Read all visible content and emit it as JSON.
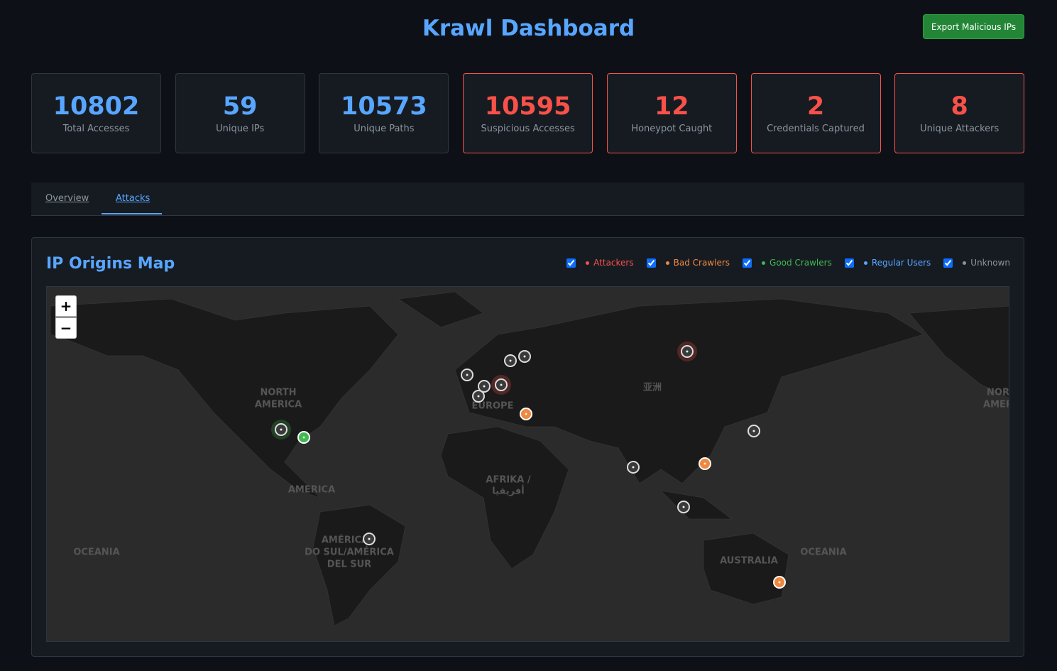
{
  "header": {
    "title": "Krawl Dashboard",
    "export_button": "Export Malicious IPs"
  },
  "stats": [
    {
      "value": 10802,
      "label": "Total Accesses",
      "alert": false
    },
    {
      "value": 59,
      "label": "Unique IPs",
      "alert": false
    },
    {
      "value": 10573,
      "label": "Unique Paths",
      "alert": false
    },
    {
      "value": 10595,
      "label": "Suspicious Accesses",
      "alert": true
    },
    {
      "value": 12,
      "label": "Honeypot Caught",
      "alert": true
    },
    {
      "value": 2,
      "label": "Credentials Captured",
      "alert": true
    },
    {
      "value": 8,
      "label": "Unique Attackers",
      "alert": true
    }
  ],
  "tabs": {
    "items": [
      "Overview",
      "Attacks"
    ],
    "active": 1
  },
  "map": {
    "title": "IP Origins Map",
    "legend": [
      {
        "label": "Attackers",
        "color": "#f85149"
      },
      {
        "label": "Bad Crawlers",
        "color": "#f0883e"
      },
      {
        "label": "Good Crawlers",
        "color": "#3fb950"
      },
      {
        "label": "Regular Users",
        "color": "#58a6ff"
      },
      {
        "label": "Unknown",
        "color": "#8b949e"
      }
    ],
    "zoom": [
      "+",
      "−"
    ],
    "labels": [
      "NORTH",
      "AMERICA",
      "EUROPE",
      "AMERICA",
      "AFRIKA /",
      "أفريقيا",
      "亚洲",
      "AMÉRICA",
      "DO SUL/AMÉRICA",
      "DEL SUR",
      "OCEANIA",
      "OCEANIA",
      "AUSTRALIA",
      "NOR",
      "AMER"
    ]
  }
}
